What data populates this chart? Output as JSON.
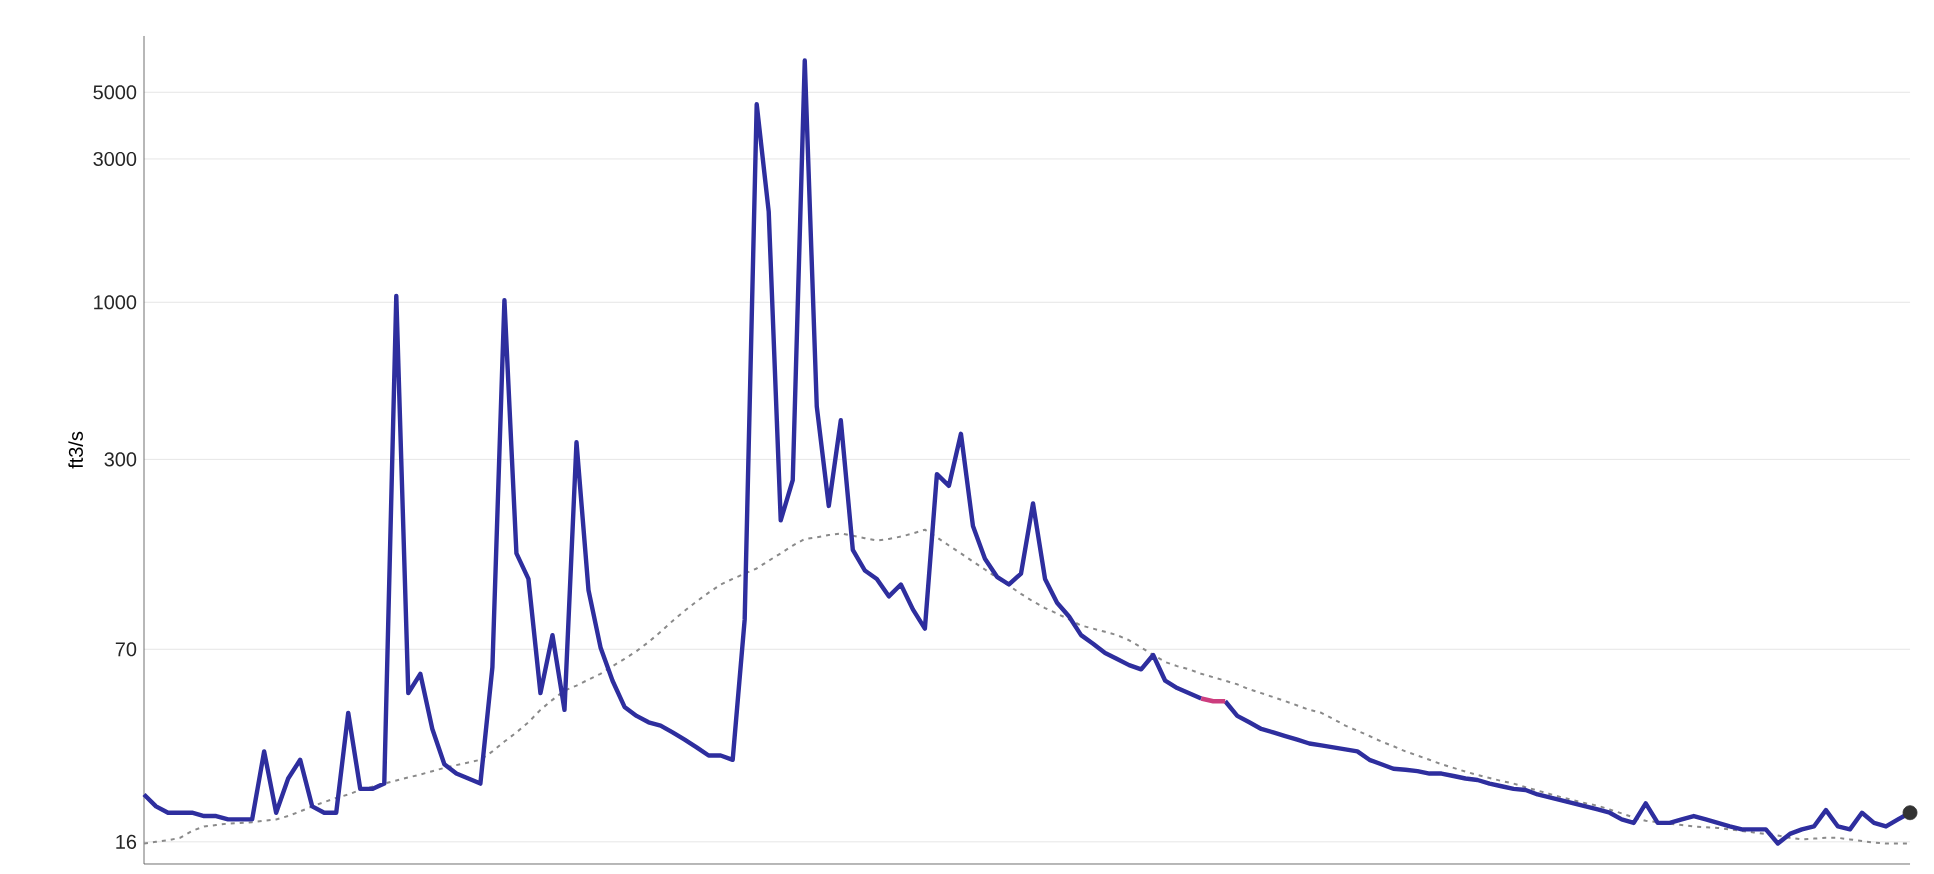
{
  "chart_data": {
    "type": "line",
    "ylabel": "ft3/s",
    "log": "y",
    "grid": "y",
    "tick_labels": "y",
    "ylim": [
      13.5,
      7700
    ],
    "yticks": [
      16,
      70,
      300,
      1000,
      3000,
      5000
    ],
    "categories": [
      null,
      null,
      null,
      null,
      null,
      null,
      null,
      null,
      null,
      null,
      null,
      null,
      null,
      null,
      null,
      null,
      null,
      null,
      null,
      null,
      null,
      null,
      null,
      null,
      null,
      null,
      null,
      null,
      null,
      null,
      null,
      null,
      null,
      null,
      null,
      null,
      null,
      null,
      null,
      null,
      null,
      null,
      null,
      null,
      null,
      null,
      null,
      null,
      null,
      null,
      null,
      null,
      null,
      null,
      null,
      null,
      null,
      null,
      null,
      null,
      null,
      null,
      null,
      null,
      null,
      null,
      null,
      null,
      null,
      null,
      null,
      null,
      null,
      null,
      null,
      null,
      null,
      null,
      null,
      null,
      null,
      null,
      null,
      null,
      null,
      null,
      null,
      null,
      null,
      null,
      null,
      null,
      null,
      null,
      null,
      null,
      null,
      null,
      null,
      null,
      null,
      null,
      null,
      null,
      null,
      null,
      null,
      null,
      null,
      null,
      null,
      null,
      null,
      null,
      null,
      null,
      null,
      null,
      null,
      null,
      null,
      null,
      null,
      null,
      null,
      null,
      null,
      null,
      null,
      null,
      null,
      null,
      null,
      null,
      null,
      null,
      null,
      null,
      null,
      null,
      null,
      null,
      null,
      null,
      null,
      null,
      null,
      null
    ],
    "series": [
      {
        "type": "line",
        "line_style": "dashed",
        "color": "#8a8a8a",
        "values": [
          15.8,
          16,
          16.2,
          16.5,
          17.4,
          18,
          18.2,
          18.4,
          18.5,
          18.6,
          18.8,
          19,
          19.5,
          20.2,
          21,
          21.7,
          22.4,
          23,
          23.8,
          24.4,
          25,
          25.6,
          26.2,
          26.8,
          27.5,
          28.2,
          28.8,
          29.4,
          30,
          32,
          34.5,
          37,
          40,
          44,
          47.5,
          51,
          53,
          55.5,
          58,
          61.5,
          65,
          69,
          74,
          80,
          87,
          94,
          101,
          108,
          115,
          120,
          125,
          130,
          138,
          146,
          155,
          163,
          165,
          168,
          170,
          167,
          164,
          161,
          163,
          166,
          170,
          175,
          165,
          155,
          146,
          137,
          129,
          121,
          114,
          107,
          101,
          96,
          92,
          88,
          84,
          82,
          80,
          78,
          75,
          71,
          67,
          63.5,
          61.5,
          60,
          58,
          56.5,
          55,
          53.5,
          51.5,
          50,
          48.5,
          47,
          45.5,
          44,
          43,
          41,
          39,
          37.5,
          36,
          34.5,
          33.3,
          32,
          31,
          30,
          29,
          28.2,
          27.4,
          26.7,
          26.1,
          25.5,
          25,
          24.3,
          23.7,
          23.1,
          22.5,
          22,
          21.5,
          21.1,
          20.5,
          19.9,
          19.3,
          18.8,
          18.6,
          18.4,
          18.2,
          18,
          17.9,
          17.8,
          17.6,
          17.4,
          17.2,
          17,
          16.8,
          16.5,
          16.3,
          16.4,
          16.5,
          16.5,
          16.3,
          16.1,
          15.9,
          15.8,
          15.8,
          15.8
        ]
      },
      {
        "type": "line",
        "line_style": "solid",
        "color": "#2e2e9e",
        "values": [
          23,
          21,
          20,
          20,
          20,
          19.5,
          19.5,
          19,
          19,
          19,
          32,
          20,
          26,
          30,
          21,
          20,
          20,
          43,
          24,
          24,
          25,
          1050,
          50,
          58,
          38,
          29,
          27,
          26,
          25,
          61,
          1016,
          146,
          120,
          50,
          78,
          44,
          342,
          110,
          71,
          55,
          45,
          42,
          40,
          39,
          37,
          35,
          33,
          31,
          31,
          30,
          88,
          4560,
          2000,
          188,
          256,
          6380,
          450,
          210,
          405,
          150,
          128,
          120,
          105,
          115,
          95,
          82,
          268,
          245,
          365,
          180,
          140,
          122,
          115,
          125,
          214,
          120,
          100,
          90,
          78,
          73,
          68,
          65,
          62,
          60,
          67,
          55,
          52,
          50,
          48,
          null,
          47,
          42,
          40,
          38,
          37,
          36,
          35,
          34,
          33.5,
          33,
          32.5,
          32,
          30,
          29,
          28,
          27.8,
          27.5,
          27,
          27,
          26.5,
          26,
          25.7,
          25,
          24.5,
          24,
          23.8,
          23,
          22.5,
          22,
          21.5,
          21,
          20.5,
          20,
          19,
          18.5,
          21.5,
          18.5,
          18.5,
          19,
          19.5,
          19,
          18.5,
          18,
          17.6,
          17.6,
          17.6,
          15.8,
          17,
          17.6,
          18,
          20.4,
          18,
          17.6,
          20,
          18.5,
          18,
          19,
          20
        ]
      },
      {
        "type": "line",
        "line_style": "solid",
        "color": "#cc3d7e",
        "values": [
          null,
          null,
          null,
          null,
          null,
          null,
          null,
          null,
          null,
          null,
          null,
          null,
          null,
          null,
          null,
          null,
          null,
          null,
          null,
          null,
          null,
          null,
          null,
          null,
          null,
          null,
          null,
          null,
          null,
          null,
          null,
          null,
          null,
          null,
          null,
          null,
          null,
          null,
          null,
          null,
          null,
          null,
          null,
          null,
          null,
          null,
          null,
          null,
          null,
          null,
          null,
          null,
          null,
          null,
          null,
          null,
          null,
          null,
          null,
          null,
          null,
          null,
          null,
          null,
          null,
          null,
          null,
          null,
          null,
          null,
          null,
          null,
          null,
          null,
          null,
          null,
          null,
          null,
          null,
          null,
          null,
          null,
          null,
          null,
          null,
          null,
          null,
          null,
          48,
          47,
          47,
          null,
          null,
          null,
          null,
          null,
          null,
          null,
          null,
          null,
          null,
          null,
          null,
          null,
          null,
          null,
          null,
          null,
          null,
          null,
          null,
          null,
          null,
          null,
          null,
          null,
          null,
          null,
          null,
          null,
          null,
          null,
          null,
          null,
          null,
          null,
          null,
          null,
          null,
          null,
          null,
          null,
          null,
          null,
          null,
          null,
          null,
          null,
          null,
          null,
          null,
          null,
          null,
          null,
          null,
          null,
          null,
          null
        ]
      },
      {
        "type": "scatter",
        "marker": "circle",
        "color": "#333333",
        "values": [
          null,
          null,
          null,
          null,
          null,
          null,
          null,
          null,
          null,
          null,
          null,
          null,
          null,
          null,
          null,
          null,
          null,
          null,
          null,
          null,
          null,
          null,
          null,
          null,
          null,
          null,
          null,
          null,
          null,
          null,
          null,
          null,
          null,
          null,
          null,
          null,
          null,
          null,
          null,
          null,
          null,
          null,
          null,
          null,
          null,
          null,
          null,
          null,
          null,
          null,
          null,
          null,
          null,
          null,
          null,
          null,
          null,
          null,
          null,
          null,
          null,
          null,
          null,
          null,
          null,
          null,
          null,
          null,
          null,
          null,
          null,
          null,
          null,
          null,
          null,
          null,
          null,
          null,
          null,
          null,
          null,
          null,
          null,
          null,
          null,
          null,
          null,
          null,
          null,
          null,
          null,
          null,
          null,
          null,
          null,
          null,
          null,
          null,
          null,
          null,
          null,
          null,
          null,
          null,
          null,
          null,
          null,
          null,
          null,
          null,
          null,
          null,
          null,
          null,
          null,
          null,
          null,
          null,
          null,
          null,
          null,
          null,
          null,
          null,
          null,
          null,
          null,
          null,
          null,
          null,
          null,
          null,
          null,
          null,
          null,
          null,
          null,
          null,
          null,
          null,
          null,
          null,
          null,
          null,
          null,
          null,
          null,
          20
        ]
      }
    ]
  }
}
